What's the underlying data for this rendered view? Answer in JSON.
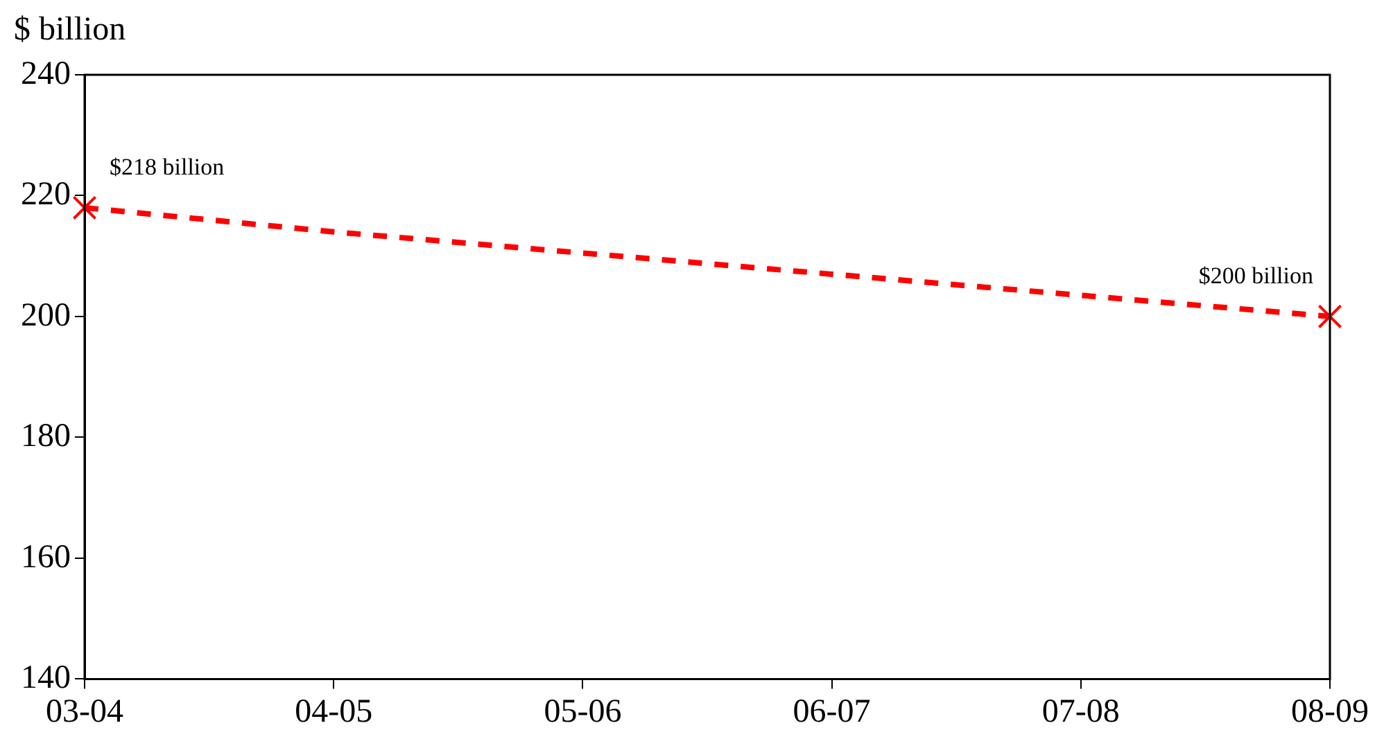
{
  "chart_data": {
    "type": "line",
    "ylabel": "$ billion",
    "categories": [
      "03-04",
      "04-05",
      "05-06",
      "06-07",
      "07-08",
      "08-09"
    ],
    "series": [
      {
        "color": "#ff0000",
        "values": [
          218,
          214,
          210.5,
          207,
          203.5,
          200
        ],
        "marker": "none",
        "line_style": "dashed"
      },
      {
        "type": "scatter",
        "color": "#ff0000",
        "x": [
          "03-04",
          "08-09"
        ],
        "values": [
          218,
          200
        ],
        "marker": "cross"
      }
    ],
    "ylim": [
      140,
      240
    ],
    "yticks": [
      140,
      160,
      180,
      200,
      220,
      240
    ],
    "grid": false,
    "legend": false,
    "annotations": [
      {
        "text": "$218 billion",
        "x": "03-04",
        "y": 218
      },
      {
        "text": "$200 billion",
        "x": "08-09",
        "y": 200
      }
    ]
  }
}
